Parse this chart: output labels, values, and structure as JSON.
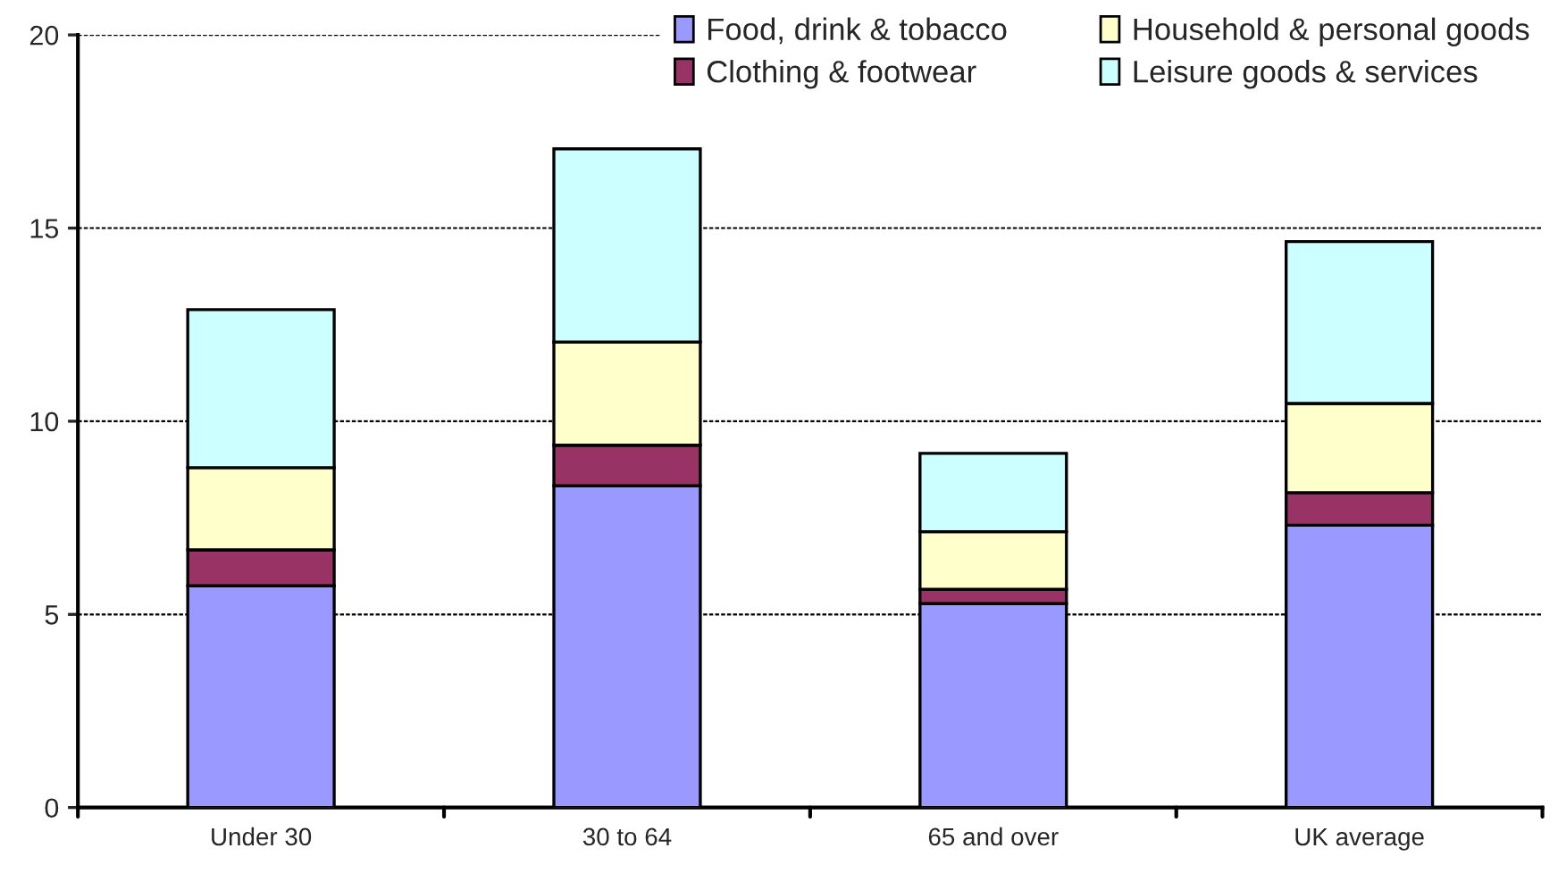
{
  "chart_data": {
    "type": "bar",
    "stacked": true,
    "categories": [
      "Under 30",
      "30 to 64",
      "65 and over",
      "UK average"
    ],
    "series": [
      {
        "name": "Food, drink & tobacco",
        "color": "#9999ff",
        "values": [
          5.74,
          8.33,
          5.28,
          7.31
        ]
      },
      {
        "name": "Clothing & footwear",
        "color": "#993366",
        "values": [
          0.93,
          1.05,
          0.37,
          0.84
        ]
      },
      {
        "name": "Household & personal goods",
        "color": "#ffffcc",
        "values": [
          2.13,
          2.67,
          1.49,
          2.31
        ]
      },
      {
        "name": "Leisure goods & services",
        "color": "#ccffff",
        "values": [
          4.09,
          5.0,
          2.03,
          4.19
        ]
      }
    ],
    "ylim": [
      0,
      20
    ],
    "yticks": [
      0,
      5,
      10,
      15,
      20
    ],
    "grid": "y",
    "legend": "top right"
  }
}
